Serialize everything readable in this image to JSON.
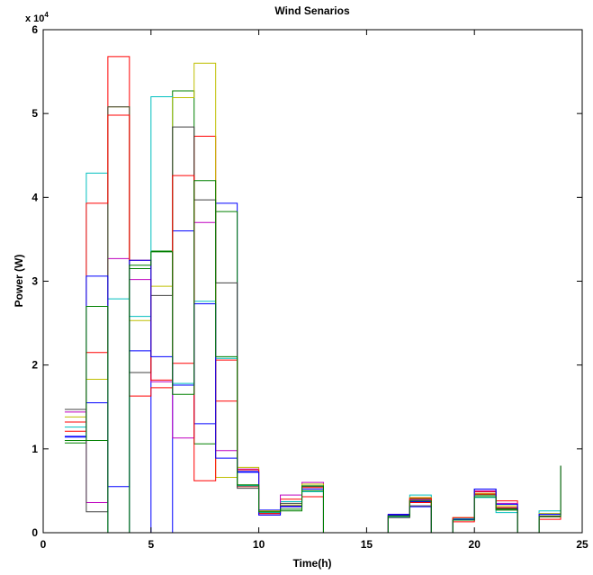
{
  "chart_data": {
    "type": "line",
    "title": "Wind Senarios",
    "xlabel": "Time(h)",
    "ylabel": "Power (W)",
    "y_exponent_label": "x 10",
    "y_exponent_power": "4",
    "xlim": [
      0,
      25
    ],
    "ylim": [
      0,
      60000
    ],
    "x_ticks": [
      0,
      5,
      10,
      15,
      20,
      25
    ],
    "y_ticks": [
      0,
      10000,
      20000,
      30000,
      40000,
      50000,
      60000
    ],
    "x_tick_labels": [
      "0",
      "5",
      "10",
      "15",
      "20",
      "25"
    ],
    "y_tick_labels": [
      "0",
      "1",
      "2",
      "3",
      "4",
      "5",
      "6"
    ],
    "grid": false,
    "step": true,
    "x": [
      1,
      2,
      3,
      4,
      5,
      6,
      7,
      8,
      9,
      10,
      11,
      12,
      13,
      14,
      15,
      16,
      17,
      18,
      19,
      20,
      21,
      22,
      23,
      24
    ],
    "series": [
      {
        "color": "#0000ff",
        "values": [
          11500,
          15500,
          5500,
          21700,
          0,
          36000,
          13000,
          39300,
          7300,
          2700,
          3200,
          5200,
          0,
          0,
          0,
          2200,
          3700,
          0,
          1600,
          4900,
          2900,
          0,
          2200,
          8000
        ]
      },
      {
        "color": "#008000",
        "values": [
          10700,
          11000,
          0,
          31500,
          33600,
          52700,
          10600,
          38300,
          5700,
          2500,
          2600,
          5000,
          0,
          0,
          0,
          2000,
          4000,
          0,
          1500,
          4500,
          2800,
          0,
          2000,
          8000
        ]
      },
      {
        "color": "#ff0000",
        "values": [
          13200,
          21500,
          56800,
          16300,
          17300,
          20200,
          47300,
          15700,
          5500,
          2300,
          4000,
          4300,
          0,
          0,
          0,
          1900,
          3600,
          0,
          1300,
          4900,
          3800,
          0,
          1600,
          8000
        ]
      },
      {
        "color": "#00bfbf",
        "values": [
          12600,
          42900,
          27900,
          25800,
          52000,
          17800,
          27600,
          20800,
          5600,
          2400,
          3700,
          4900,
          0,
          0,
          0,
          1900,
          4500,
          0,
          1700,
          4200,
          2400,
          0,
          2600,
          8000
        ]
      },
      {
        "color": "#bf00bf",
        "values": [
          14400,
          3600,
          32700,
          30200,
          18000,
          11300,
          37000,
          9800,
          7600,
          2100,
          4500,
          6000,
          0,
          0,
          0,
          2100,
          3900,
          0,
          1500,
          5000,
          3500,
          0,
          2200,
          8000
        ]
      },
      {
        "color": "#bfbf00",
        "values": [
          13800,
          18300,
          50800,
          25300,
          29400,
          51900,
          56000,
          6600,
          7800,
          2600,
          3300,
          5800,
          0,
          0,
          0,
          2000,
          4200,
          0,
          1800,
          4700,
          3200,
          0,
          2300,
          8000
        ]
      },
      {
        "color": "#404040",
        "values": [
          14700,
          2500,
          50800,
          19100,
          28300,
          48400,
          39700,
          29800,
          5300,
          2300,
          3500,
          5500,
          0,
          0,
          0,
          1800,
          3200,
          0,
          1500,
          5200,
          2900,
          0,
          2000,
          8000
        ]
      },
      {
        "color": "#ff0000",
        "values": [
          12100,
          39300,
          49800,
          32500,
          18200,
          42600,
          6200,
          20600,
          7500,
          2300,
          3100,
          5400,
          0,
          0,
          0,
          2100,
          4100,
          0,
          1800,
          4600,
          3000,
          0,
          1900,
          8000
        ]
      },
      {
        "color": "#0000ff",
        "values": [
          11400,
          30600,
          0,
          32500,
          21000,
          17600,
          27300,
          8900,
          7200,
          2100,
          3100,
          5200,
          0,
          0,
          0,
          2100,
          3100,
          0,
          1500,
          5200,
          3400,
          0,
          2200,
          8000
        ]
      },
      {
        "color": "#008000",
        "values": [
          11000,
          27000,
          0,
          31900,
          33500,
          16500,
          42000,
          21000,
          5700,
          2500,
          2800,
          5600,
          0,
          0,
          0,
          2000,
          3800,
          0,
          1500,
          4300,
          2700,
          0,
          1900,
          8000
        ]
      }
    ]
  }
}
